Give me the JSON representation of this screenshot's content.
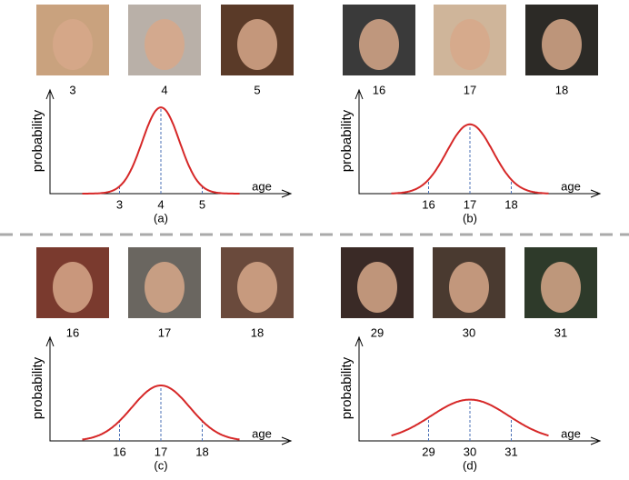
{
  "panels": [
    {
      "caption": "(a)",
      "faces": [
        3,
        4,
        5
      ],
      "chart": {
        "type": "line",
        "y_label": "probability",
        "x_label": "age",
        "xticks": [
          3,
          4,
          5
        ],
        "sigma": 0.45,
        "ylim": [
          0,
          1
        ],
        "color": "#d62828"
      }
    },
    {
      "caption": "(b)",
      "faces": [
        16,
        17,
        18
      ],
      "chart": {
        "type": "line",
        "y_label": "probability",
        "x_label": "age",
        "xticks": [
          16,
          17,
          18
        ],
        "sigma": 0.56,
        "ylim": [
          0,
          1
        ],
        "color": "#d62828"
      }
    },
    {
      "caption": "(c)",
      "faces": [
        16,
        17,
        18
      ],
      "chart": {
        "type": "line",
        "y_label": "probability",
        "x_label": "age",
        "xticks": [
          16,
          17,
          18
        ],
        "sigma": 0.7,
        "ylim": [
          0,
          1
        ],
        "color": "#d62828"
      }
    },
    {
      "caption": "(d)",
      "faces": [
        29,
        30,
        31
      ],
      "chart": {
        "type": "line",
        "y_label": "probability",
        "x_label": "age",
        "xticks": [
          29,
          30,
          31
        ],
        "sigma": 0.94,
        "ylim": [
          0,
          1
        ],
        "color": "#d62828"
      }
    }
  ]
}
